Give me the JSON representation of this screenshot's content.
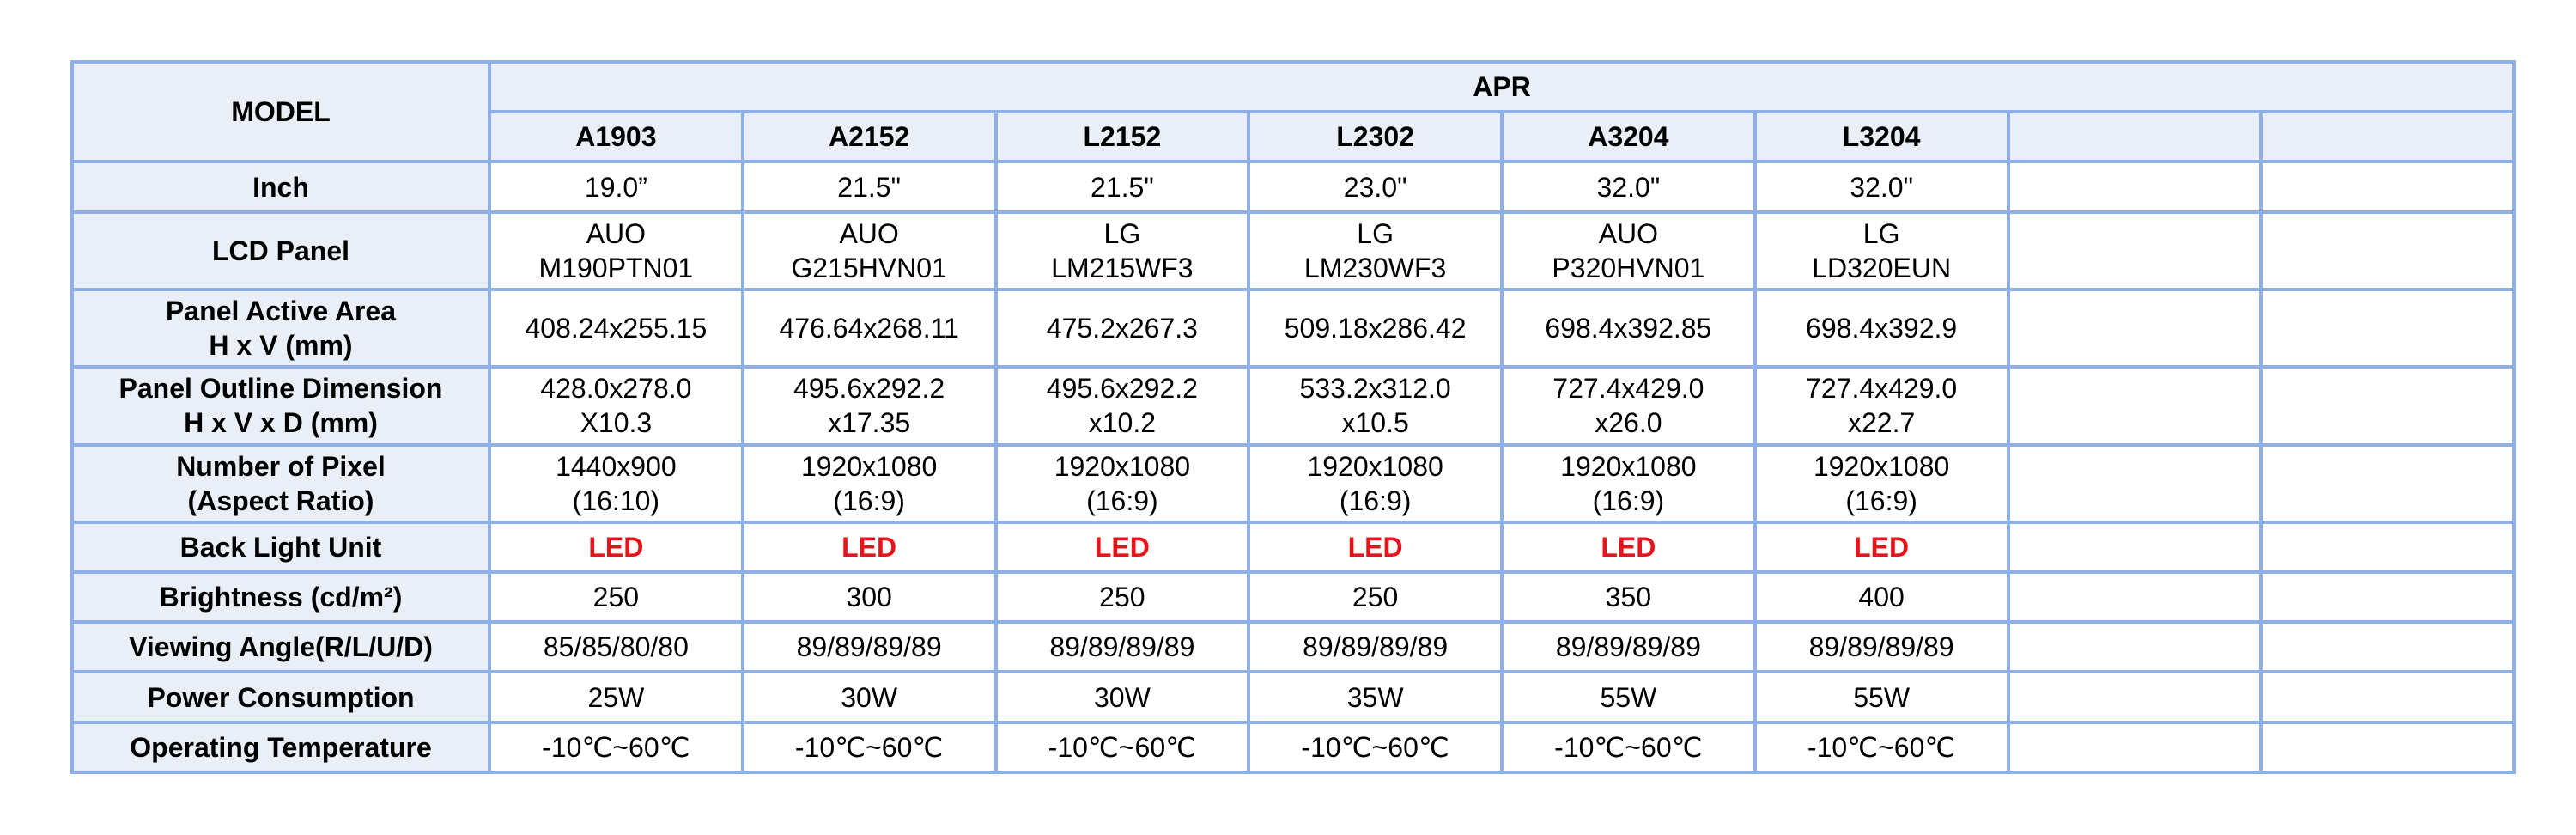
{
  "table": {
    "corner_label": "MODEL",
    "group_label": "APR",
    "models": [
      "A1903",
      "A2152",
      "L2152",
      "L2302",
      "A3204",
      "L3204",
      "",
      ""
    ],
    "accent_color": "#e8141b",
    "rows": [
      {
        "label": "Inch",
        "values": [
          "19.0”",
          "21.5\"",
          "21.5\"",
          "23.0\"",
          "32.0\"",
          "32.0\"",
          "",
          ""
        ]
      },
      {
        "label": "LCD Panel",
        "values": [
          "AUO\nM190PTN01",
          "AUO\nG215HVN01",
          "LG\nLM215WF3",
          "LG\nLM230WF3",
          "AUO\nP320HVN01",
          "LG\nLD320EUN",
          "",
          ""
        ]
      },
      {
        "label": "Panel Active Area\nH x V (mm)",
        "values": [
          "408.24x255.15",
          "476.64x268.11",
          "475.2x267.3",
          "509.18x286.42",
          "698.4x392.85",
          "698.4x392.9",
          "",
          ""
        ]
      },
      {
        "label": "Panel Outline Dimension\nH x V x D (mm)",
        "values": [
          "428.0x278.0\nX10.3",
          "495.6x292.2\nx17.35",
          "495.6x292.2\nx10.2",
          "533.2x312.0\nx10.5",
          "727.4x429.0\nx26.0",
          "727.4x429.0\nx22.7",
          "",
          ""
        ]
      },
      {
        "label": "Number of Pixel\n(Aspect Ratio)",
        "values": [
          "1440x900\n(16:10)",
          "1920x1080\n(16:9)",
          "1920x1080\n(16:9)",
          "1920x1080\n(16:9)",
          "1920x1080\n(16:9)",
          "1920x1080\n(16:9)",
          "",
          ""
        ]
      },
      {
        "label": "Back Light Unit",
        "values": [
          "LED",
          "LED",
          "LED",
          "LED",
          "LED",
          "LED",
          "",
          ""
        ]
      },
      {
        "label": "Brightness (cd/m²)",
        "values": [
          "250",
          "300",
          "250",
          "250",
          "350",
          "400",
          "",
          ""
        ]
      },
      {
        "label": "Viewing Angle(R/L/U/D)",
        "values": [
          "85/85/80/80",
          "89/89/89/89",
          "89/89/89/89",
          "89/89/89/89",
          "89/89/89/89",
          "89/89/89/89",
          "",
          ""
        ]
      },
      {
        "label": "Power Consumption",
        "values": [
          "25W",
          "30W",
          "30W",
          "35W",
          "55W",
          "55W",
          "",
          ""
        ]
      },
      {
        "label": "Operating Temperature",
        "values": [
          "-10℃~60℃",
          "-10℃~60℃",
          "-10℃~60℃",
          "-10℃~60℃",
          "-10℃~60℃",
          "-10℃~60℃",
          "",
          ""
        ]
      }
    ]
  }
}
